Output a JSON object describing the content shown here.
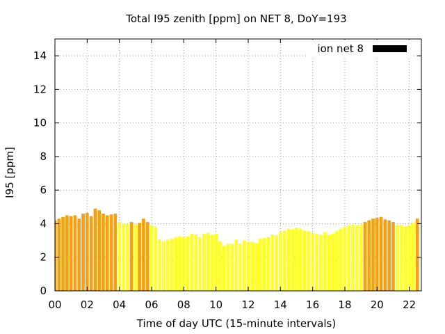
{
  "chart_data": {
    "type": "bar",
    "title": "Total I95 zenith [ppm] on NET 8, DoY=193",
    "xlabel": "Time of day UTC (15-minute intervals)",
    "ylabel": "I95 [ppm]",
    "xlim": [
      0,
      22.75
    ],
    "ylim": [
      0,
      15
    ],
    "x_ticks": [
      "00",
      "02",
      "04",
      "06",
      "08",
      "10",
      "12",
      "14",
      "16",
      "18",
      "20",
      "22"
    ],
    "y_ticks": [
      "0",
      "2",
      "4",
      "6",
      "8",
      "10",
      "12",
      "14"
    ],
    "grid": true,
    "legend": {
      "label": "ion net 8",
      "position": "top-right",
      "color": "#000000"
    },
    "colors": {
      "orange": "#f5a011",
      "yellow": "#ffff20"
    },
    "interval_hours": 0.25,
    "values": [
      4.2,
      4.3,
      4.4,
      4.5,
      4.45,
      4.5,
      4.3,
      4.6,
      4.65,
      4.45,
      4.9,
      4.8,
      4.6,
      4.5,
      4.55,
      4.6,
      4.1,
      4.0,
      4.0,
      4.1,
      3.95,
      4.05,
      4.3,
      4.1,
      3.9,
      3.8,
      3.05,
      2.95,
      3.05,
      3.1,
      3.2,
      3.25,
      3.2,
      3.25,
      3.4,
      3.35,
      3.2,
      3.4,
      3.45,
      3.35,
      3.4,
      2.95,
      2.7,
      2.8,
      2.8,
      3.05,
      2.8,
      3.0,
      2.9,
      2.9,
      2.85,
      3.1,
      3.15,
      3.2,
      3.35,
      3.3,
      3.5,
      3.6,
      3.7,
      3.65,
      3.75,
      3.7,
      3.6,
      3.55,
      3.45,
      3.4,
      3.35,
      3.5,
      3.35,
      3.4,
      3.55,
      3.7,
      3.8,
      3.9,
      3.95,
      3.9,
      3.95,
      4.1,
      4.2,
      4.3,
      4.35,
      4.4,
      4.25,
      4.2,
      4.1,
      3.9,
      3.9,
      3.85,
      3.9,
      4.05,
      4.3
    ],
    "bar_colors": [
      "orange",
      "orange",
      "orange",
      "orange",
      "orange",
      "orange",
      "orange",
      "orange",
      "orange",
      "orange",
      "orange",
      "orange",
      "orange",
      "orange",
      "orange",
      "orange",
      "yellow",
      "yellow",
      "yellow",
      "orange",
      "yellow",
      "orange",
      "orange",
      "orange",
      "yellow",
      "yellow",
      "yellow",
      "yellow",
      "yellow",
      "yellow",
      "yellow",
      "yellow",
      "yellow",
      "yellow",
      "yellow",
      "yellow",
      "yellow",
      "yellow",
      "yellow",
      "yellow",
      "yellow",
      "yellow",
      "yellow",
      "yellow",
      "yellow",
      "yellow",
      "yellow",
      "yellow",
      "yellow",
      "yellow",
      "yellow",
      "yellow",
      "yellow",
      "yellow",
      "yellow",
      "yellow",
      "yellow",
      "yellow",
      "yellow",
      "yellow",
      "yellow",
      "yellow",
      "yellow",
      "yellow",
      "yellow",
      "yellow",
      "yellow",
      "yellow",
      "yellow",
      "yellow",
      "yellow",
      "yellow",
      "yellow",
      "yellow",
      "yellow",
      "yellow",
      "yellow",
      "orange",
      "orange",
      "orange",
      "orange",
      "orange",
      "orange",
      "orange",
      "orange",
      "yellow",
      "yellow",
      "yellow",
      "yellow",
      "yellow",
      "orange"
    ]
  }
}
